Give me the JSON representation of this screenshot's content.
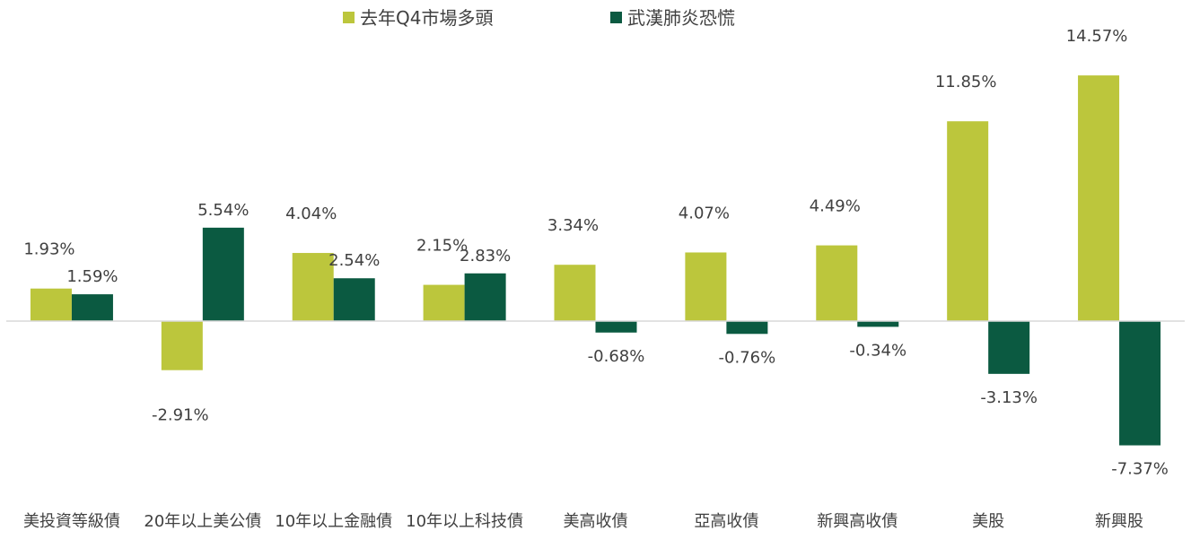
{
  "chart_data": {
    "type": "bar",
    "categories": [
      "美投資等級債",
      "20年以上美公債",
      "10年以上金融債",
      "10年以上科技債",
      "美高收債",
      "亞高收債",
      "新興高收債",
      "美股",
      "新興股"
    ],
    "series": [
      {
        "name": "去年Q4市場多頭",
        "color": "#bcc63c",
        "values": [
          1.93,
          -2.91,
          4.04,
          2.15,
          3.34,
          4.07,
          4.49,
          11.85,
          14.57
        ],
        "labels": [
          "1.93%",
          "-2.91%",
          "4.04%",
          "2.15%",
          "3.34%",
          "4.07%",
          "4.49%",
          "11.85%",
          "14.57%"
        ]
      },
      {
        "name": "武漢肺炎恐慌",
        "color": "#0b5a41",
        "values": [
          1.59,
          5.54,
          2.54,
          2.83,
          -0.68,
          -0.76,
          -0.34,
          -3.13,
          -7.37
        ],
        "labels": [
          "1.59%",
          "5.54%",
          "2.54%",
          "2.83%",
          "-0.68%",
          "-0.76%",
          "-0.34%",
          "-3.13%",
          "-7.37%"
        ]
      }
    ],
    "value_format": "percent",
    "legend_position": "top-center",
    "grid": false
  }
}
